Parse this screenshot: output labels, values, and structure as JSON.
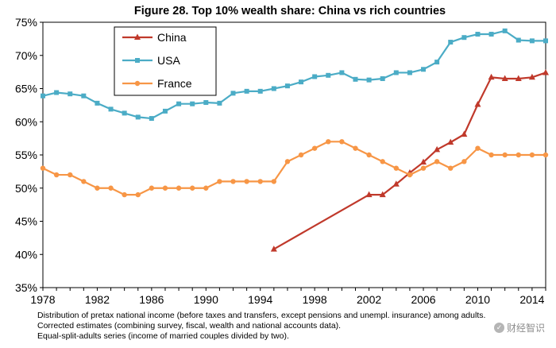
{
  "chart_data": {
    "type": "line",
    "title": "Figure 28. Top 10% wealth share: China vs rich countries",
    "xlabel": "",
    "ylabel": "",
    "xlim": [
      1978,
      2015
    ],
    "ylim": [
      35,
      75
    ],
    "x_ticks": [
      "1978",
      "1982",
      "1986",
      "1990",
      "1994",
      "1998",
      "2002",
      "2006",
      "2010",
      "2014"
    ],
    "y_ticks": [
      "35%",
      "40%",
      "45%",
      "50%",
      "55%",
      "60%",
      "65%",
      "70%",
      "75%"
    ],
    "legend_position": "top-left",
    "grid": false,
    "series": [
      {
        "name": "China",
        "color": "#c0392b",
        "marker": "triangle",
        "x": [
          1995,
          2002,
          2003,
          2004,
          2005,
          2006,
          2007,
          2008,
          2009,
          2010,
          2011,
          2012,
          2013,
          2014,
          2015
        ],
        "values": [
          40.8,
          49.0,
          49.0,
          50.6,
          52.3,
          53.9,
          55.8,
          56.9,
          58.1,
          62.6,
          66.7,
          66.5,
          66.5,
          66.7,
          67.4
        ]
      },
      {
        "name": "USA",
        "color": "#4bacc6",
        "marker": "square",
        "x": [
          1978,
          1979,
          1980,
          1981,
          1982,
          1983,
          1984,
          1985,
          1986,
          1987,
          1988,
          1989,
          1990,
          1991,
          1992,
          1993,
          1994,
          1995,
          1996,
          1997,
          1998,
          1999,
          2000,
          2001,
          2002,
          2003,
          2004,
          2005,
          2006,
          2007,
          2008,
          2009,
          2010,
          2011,
          2012,
          2013,
          2014,
          2015
        ],
        "values": [
          63.9,
          64.4,
          64.2,
          63.9,
          62.8,
          61.9,
          61.3,
          60.7,
          60.5,
          61.6,
          62.7,
          62.7,
          62.9,
          62.8,
          64.3,
          64.6,
          64.6,
          65.0,
          65.4,
          66.0,
          66.8,
          67.0,
          67.4,
          66.4,
          66.3,
          66.5,
          67.4,
          67.4,
          67.9,
          69.0,
          72.0,
          72.7,
          73.2,
          73.2,
          73.7,
          72.3,
          72.2,
          72.2
        ]
      },
      {
        "name": "France",
        "color": "#f79646",
        "marker": "circle",
        "x": [
          1978,
          1979,
          1980,
          1981,
          1982,
          1983,
          1984,
          1985,
          1986,
          1987,
          1988,
          1989,
          1990,
          1991,
          1992,
          1993,
          1994,
          1995,
          1996,
          1997,
          1998,
          1999,
          2000,
          2001,
          2002,
          2003,
          2004,
          2005,
          2006,
          2007,
          2008,
          2009,
          2010,
          2011,
          2012,
          2013,
          2014,
          2015
        ],
        "values": [
          53.0,
          52.0,
          52.0,
          51.0,
          50.0,
          50.0,
          49.0,
          49.0,
          50.0,
          50.0,
          50.0,
          50.0,
          50.0,
          51.0,
          51.0,
          51.0,
          51.0,
          51.0,
          54.0,
          55.0,
          56.0,
          57.0,
          57.0,
          56.0,
          55.0,
          54.0,
          53.0,
          52.0,
          53.0,
          54.0,
          53.0,
          54.0,
          56.0,
          55.0,
          55.0,
          55.0,
          55.0,
          55.0
        ]
      }
    ]
  },
  "notes": [
    "Distribution of pretax national income (before taxes and transfers, except pensions and unempl. insurance) among adults.",
    "Corrected estimates (combining survey, fiscal, wealth and national accounts data).",
    "Equal-split-adults series (income of married couples divided by two)."
  ],
  "watermark": "财经智识"
}
